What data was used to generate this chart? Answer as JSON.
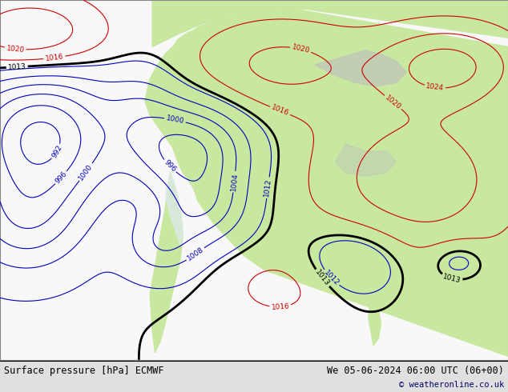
{
  "title_left": "Surface pressure [hPa] ECMWF",
  "title_right": "We 05-06-2024 06:00 UTC (06+00)",
  "copyright": "© weatheronline.co.uk",
  "bg_color": "#e0e0e0",
  "ocean_color": "#ffffff",
  "land_color": "#c8e8a0",
  "land_color2": "#d0e8b0",
  "gray_land_color": "#c0c8b8",
  "bottom_bar_color": "#d8d8d8",
  "figsize": [
    6.34,
    4.9
  ],
  "dpi": 100
}
